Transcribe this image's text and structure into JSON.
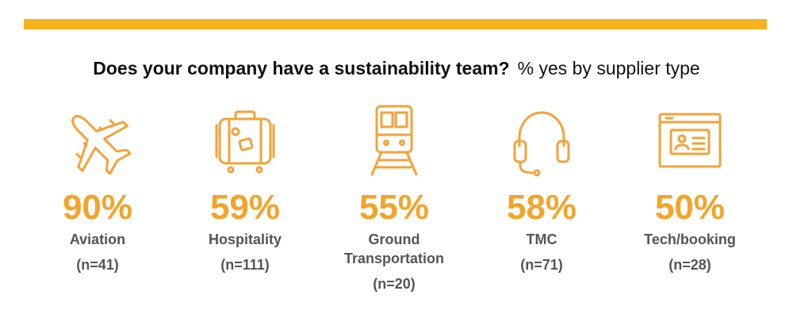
{
  "colors": {
    "accent": "#F9B11B",
    "value": "#F3A42A",
    "stroke": "#F2A33A",
    "text": "#555555"
  },
  "title": {
    "bold": "Does your company have a sustainability team?",
    "regular": "% yes by supplier type"
  },
  "chart_data": {
    "type": "bar",
    "title": "Does your company have a sustainability team? % yes by supplier type",
    "categories": [
      "Aviation",
      "Hospitality",
      "Ground Transportation",
      "TMC",
      "Tech/booking"
    ],
    "values": [
      90,
      59,
      55,
      58,
      50
    ],
    "value_labels": [
      "90%",
      "59%",
      "55%",
      "58%",
      "50%"
    ],
    "sample_sizes": [
      "(n=41)",
      "(n=111)",
      "(n=20)",
      "(n=71)",
      "(n=28)"
    ],
    "icons": [
      "airplane-icon",
      "suitcase-icon",
      "train-icon",
      "headset-icon",
      "web-browser-icon"
    ]
  }
}
